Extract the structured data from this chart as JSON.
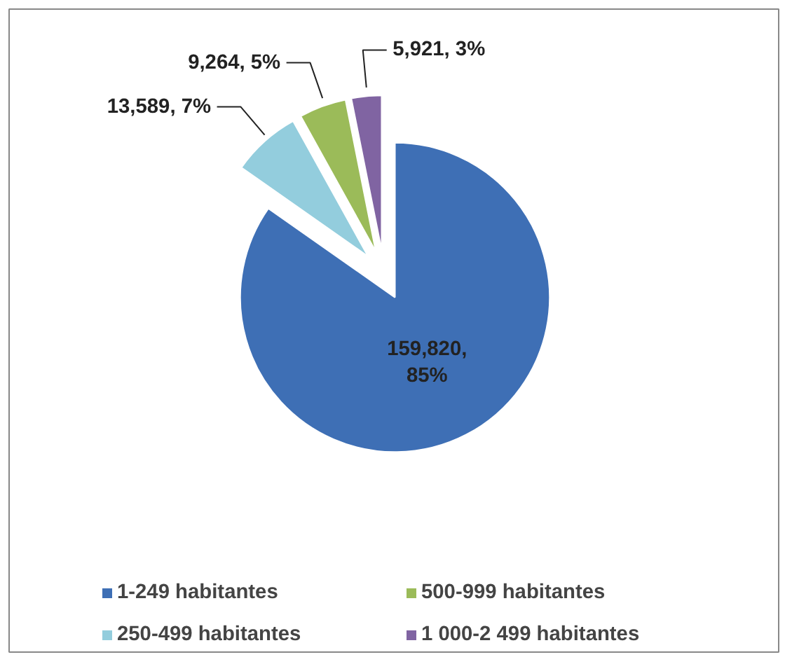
{
  "chart_data": {
    "type": "pie",
    "categories": [
      "1-249 habitantes",
      "250-499 habitantes",
      "500-999 habitantes",
      "1 000-2 499 habitantes"
    ],
    "values": [
      159820,
      13589,
      9264,
      5921
    ],
    "colors": [
      "#3e6fb5",
      "#93cddd",
      "#9bbb59",
      "#8064a2"
    ],
    "value_labels": [
      "159,820, 85%",
      "13,589, 7%",
      "9,264, 5%",
      "5,921, 3%"
    ],
    "legend": "bottom"
  }
}
